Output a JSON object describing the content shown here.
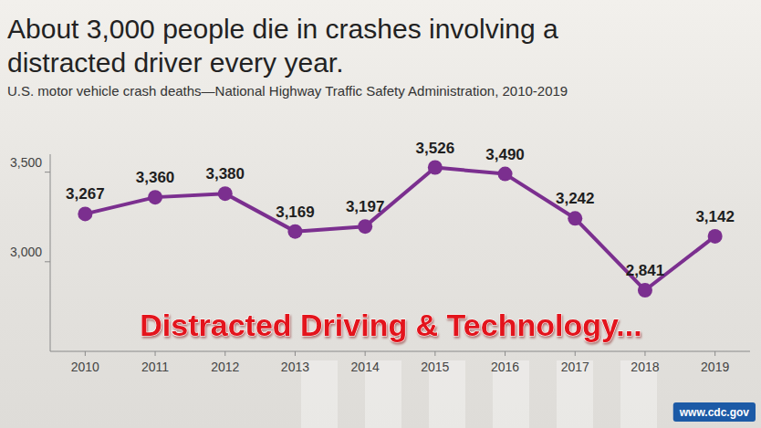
{
  "chart_data": {
    "type": "line",
    "title": "About 3,000 people die in crashes involving a distracted driver every year.",
    "subtitle": "U.S. motor vehicle crash deaths—National Highway Traffic Safety Administration, 2010-2019",
    "annotations": [
      "Distracted Driving & Technology...",
      "www.cdc.gov"
    ],
    "categories": [
      "2010",
      "2011",
      "2012",
      "2013",
      "2014",
      "2015",
      "2016",
      "2017",
      "2018",
      "2019"
    ],
    "values": [
      3267,
      3360,
      3380,
      3169,
      3197,
      3526,
      3490,
      3242,
      2841,
      3142
    ],
    "value_labels": [
      "3,267",
      "3,360",
      "3,380",
      "3,169",
      "3,197",
      "3,526",
      "3,490",
      "3,242",
      "2,841",
      "3,142"
    ],
    "color": "#7b2f8f",
    "marker": "circle",
    "data_labels": true,
    "grid": false,
    "ylim": [
      2500,
      3600
    ],
    "yticks": [
      {
        "value": 3000,
        "label": "3,000"
      },
      {
        "value": 3500,
        "label": "3,500"
      }
    ]
  }
}
